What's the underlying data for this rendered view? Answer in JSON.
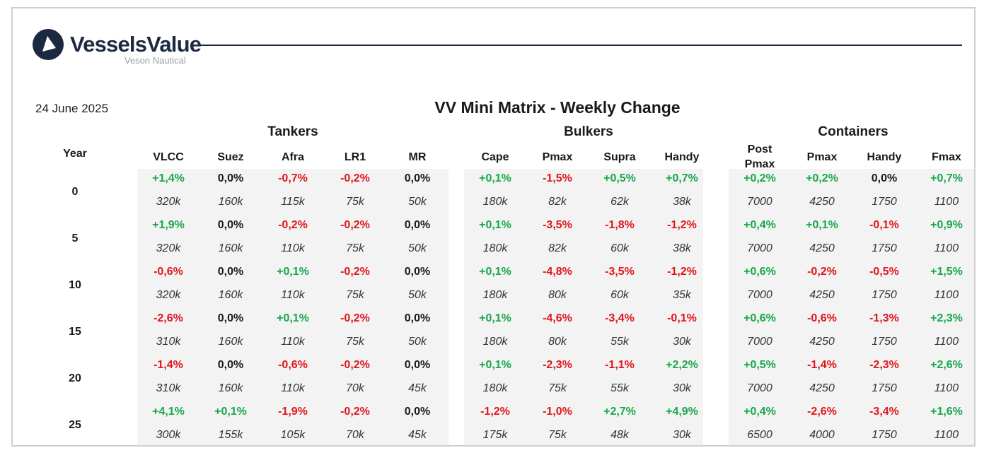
{
  "header": {
    "brand_name": "VesselsValue",
    "brand_sub": "Veson Nautical",
    "date": "24 June 2025",
    "title": "VV Mini Matrix - Weekly Change"
  },
  "colors": {
    "positive": "#17a84b",
    "negative": "#e0161b",
    "neutral": "#1a1a1a",
    "brand": "#1b2a41"
  },
  "year_header": "Year",
  "groups": [
    {
      "label": "Tankers",
      "columns": [
        "VLCC",
        "Suez",
        "Afra",
        "LR1",
        "MR"
      ]
    },
    {
      "label": "Bulkers",
      "columns": [
        "Cape",
        "Pmax",
        "Supra",
        "Handy"
      ]
    },
    {
      "label": "Containers",
      "columns": [
        "Post\nPmax",
        "Pmax",
        "Handy",
        "Fmax"
      ]
    }
  ],
  "rows": [
    {
      "year": "0",
      "changes": [
        "+1,4%",
        "0,0%",
        "-0,7%",
        "-0,2%",
        "0,0%",
        "+0,1%",
        "-1,5%",
        "+0,5%",
        "+0,7%",
        "+0,2%",
        "+0,2%",
        "0,0%",
        "+0,7%"
      ],
      "sizes": [
        "320k",
        "160k",
        "115k",
        "75k",
        "50k",
        "180k",
        "82k",
        "62k",
        "38k",
        "7000",
        "4250",
        "1750",
        "1100"
      ]
    },
    {
      "year": "5",
      "changes": [
        "+1,9%",
        "0,0%",
        "-0,2%",
        "-0,2%",
        "0,0%",
        "+0,1%",
        "-3,5%",
        "-1,8%",
        "-1,2%",
        "+0,4%",
        "+0,1%",
        "-0,1%",
        "+0,9%"
      ],
      "sizes": [
        "320k",
        "160k",
        "110k",
        "75k",
        "50k",
        "180k",
        "82k",
        "60k",
        "38k",
        "7000",
        "4250",
        "1750",
        "1100"
      ]
    },
    {
      "year": "10",
      "changes": [
        "-0,6%",
        "0,0%",
        "+0,1%",
        "-0,2%",
        "0,0%",
        "+0,1%",
        "-4,8%",
        "-3,5%",
        "-1,2%",
        "+0,6%",
        "-0,2%",
        "-0,5%",
        "+1,5%"
      ],
      "sizes": [
        "320k",
        "160k",
        "110k",
        "75k",
        "50k",
        "180k",
        "80k",
        "60k",
        "35k",
        "7000",
        "4250",
        "1750",
        "1100"
      ]
    },
    {
      "year": "15",
      "changes": [
        "-2,6%",
        "0,0%",
        "+0,1%",
        "-0,2%",
        "0,0%",
        "+0,1%",
        "-4,6%",
        "-3,4%",
        "-0,1%",
        "+0,6%",
        "-0,6%",
        "-1,3%",
        "+2,3%"
      ],
      "sizes": [
        "310k",
        "160k",
        "110k",
        "75k",
        "50k",
        "180k",
        "80k",
        "55k",
        "30k",
        "7000",
        "4250",
        "1750",
        "1100"
      ]
    },
    {
      "year": "20",
      "changes": [
        "-1,4%",
        "0,0%",
        "-0,6%",
        "-0,2%",
        "0,0%",
        "+0,1%",
        "-2,3%",
        "-1,1%",
        "+2,2%",
        "+0,5%",
        "-1,4%",
        "-2,3%",
        "+2,6%"
      ],
      "sizes": [
        "310k",
        "160k",
        "110k",
        "70k",
        "45k",
        "180k",
        "75k",
        "55k",
        "30k",
        "7000",
        "4250",
        "1750",
        "1100"
      ]
    },
    {
      "year": "25",
      "changes": [
        "+4,1%",
        "+0,1%",
        "-1,9%",
        "-0,2%",
        "0,0%",
        "-1,2%",
        "-1,0%",
        "+2,7%",
        "+4,9%",
        "+0,4%",
        "-2,6%",
        "-3,4%",
        "+1,6%"
      ],
      "sizes": [
        "300k",
        "155k",
        "105k",
        "70k",
        "45k",
        "175k",
        "75k",
        "48k",
        "30k",
        "6500",
        "4000",
        "1750",
        "1100"
      ]
    }
  ]
}
